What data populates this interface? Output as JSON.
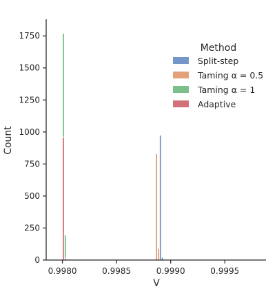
{
  "chart_data": {
    "type": "bar",
    "subtype": "stacked histogram",
    "xlabel": "V",
    "ylabel": "Count",
    "xlim": [
      0.99785,
      0.99988
    ],
    "ylim": [
      0,
      1880
    ],
    "xticks": [
      0.998,
      0.9985,
      0.999,
      0.9995
    ],
    "xtick_labels": [
      "0.9980",
      "0.9985",
      "0.9990",
      "0.9995"
    ],
    "yticks": [
      0,
      250,
      500,
      750,
      1000,
      1250,
      1500,
      1750
    ],
    "ytick_labels": [
      "0",
      "250",
      "500",
      "750",
      "1000",
      "1250",
      "1500",
      "1750"
    ],
    "grid": false,
    "legend": {
      "title": "Method",
      "placement": "upper right",
      "entries": [
        {
          "label": "Split-step",
          "color": "#7596c9"
        },
        {
          "label": "Taming α = 0.5",
          "color": "#e3a07a"
        },
        {
          "label": "Taming α = 1",
          "color": "#7cbf8b"
        },
        {
          "label": "Adaptive",
          "color": "#d3717a"
        }
      ]
    },
    "series": [
      {
        "name": "Adaptive",
        "color": "#d3717a",
        "bins": [
          {
            "x0": 0.998,
            "x1": 0.998018,
            "count": 960
          },
          {
            "x0": 0.998018,
            "x1": 0.998036,
            "count": 15
          }
        ]
      },
      {
        "name": "Taming α = 1",
        "color": "#7cbf8b",
        "bins": [
          {
            "x0": 0.998,
            "x1": 0.998018,
            "count": 810
          },
          {
            "x0": 0.998018,
            "x1": 0.998036,
            "count": 180
          }
        ]
      },
      {
        "name": "Taming α = 0.5",
        "color": "#e3a07a",
        "bins": [
          {
            "x0": 0.99886,
            "x1": 0.998878,
            "count": 830
          },
          {
            "x0": 0.998878,
            "x1": 0.998896,
            "count": 90
          }
        ]
      },
      {
        "name": "Split-step",
        "color": "#7596c9",
        "bins": [
          {
            "x0": 0.998896,
            "x1": 0.998914,
            "count": 975
          },
          {
            "x0": 0.998914,
            "x1": 0.998932,
            "count": 22
          }
        ]
      }
    ]
  }
}
